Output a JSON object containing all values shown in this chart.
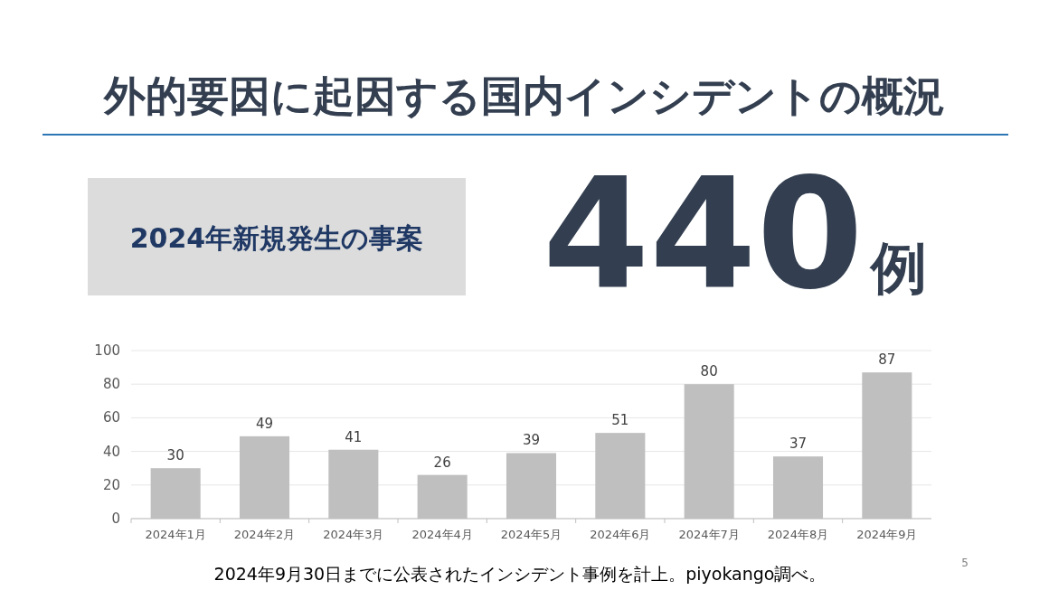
{
  "chart_data": {
    "type": "bar",
    "title": "外的要因に起因する国内インシデントの概況",
    "categories": [
      "2024年1月",
      "2024年2月",
      "2024年3月",
      "2024年4月",
      "2024年5月",
      "2024年6月",
      "2024年7月",
      "2024年8月",
      "2024年9月"
    ],
    "values": [
      30,
      49,
      41,
      26,
      39,
      51,
      80,
      37,
      87
    ],
    "color": "#bfbfbf",
    "ylim": [
      0,
      100
    ],
    "yticks": [
      0,
      20,
      40,
      60,
      80,
      100
    ],
    "grid": "y",
    "data_labels": true,
    "annotations": [
      "2024年新規発生の事案",
      "440例",
      "2024年9月30日までに公表されたインシデント事例を計上。piyokango調べ。",
      "5"
    ]
  }
}
